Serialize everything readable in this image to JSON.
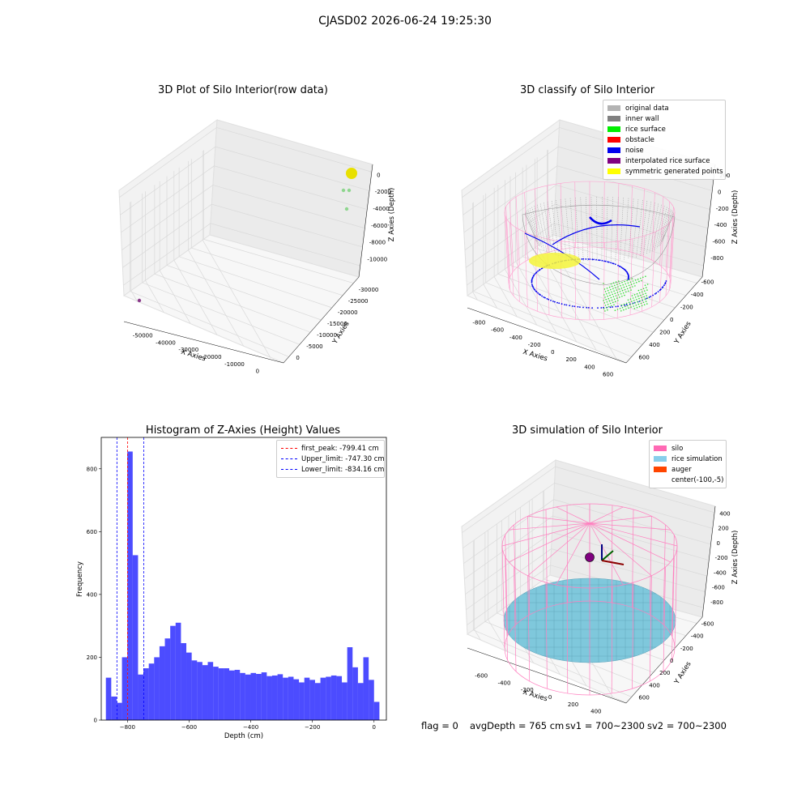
{
  "figure": {
    "suptitle": "CJASD02 2026-06-24 19:25:30",
    "footer": {
      "flag": "flag = 0",
      "avg_depth": "avgDepth = 765 cm",
      "sv1": "sv1 = 700~2300",
      "sv2": "sv2 = 700~2300"
    }
  },
  "chart_data": [
    {
      "type": "scatter",
      "subtype": "3d",
      "title": "3D Plot of Silo Interior(row data)",
      "xlabel": "X Axies",
      "ylabel": "Y Axies",
      "zlabel": "Z Axies (Depth)",
      "x_ticks": [
        "-50000",
        "-40000",
        "-30000",
        "-20000",
        "-10000",
        "0"
      ],
      "y_ticks": [
        "0",
        "-5000",
        "-10000",
        "-15000",
        "-20000",
        "-25000",
        "-30000"
      ],
      "z_ticks": [
        "0",
        "-2000",
        "-4000",
        "-6000",
        "-8000",
        "-10000"
      ],
      "series": [
        {
          "color": "#e8e000",
          "points": [
            {
              "x": 0,
              "y": 0,
              "z": -800
            }
          ]
        },
        {
          "color": "#8fd68f",
          "points": [
            {
              "x": 0,
              "y": 0,
              "z": -2400
            },
            {
              "x": 0,
              "y": -1000,
              "z": -2400
            },
            {
              "x": 0,
              "y": -2000,
              "z": -4000
            }
          ]
        },
        {
          "color": "#8b3a8b",
          "points": [
            {
              "x": -51000,
              "y": -31000,
              "z": -9500
            }
          ]
        }
      ],
      "grid": true
    },
    {
      "type": "scatter",
      "subtype": "3d",
      "title": "3D classify of Silo Interior",
      "xlabel": "X Axies",
      "ylabel": "Y Axies",
      "zlabel": "Z Axies (Depth)",
      "x_ticks": [
        "-800",
        "-600",
        "-400",
        "-200",
        "0",
        "200",
        "400",
        "600"
      ],
      "y_ticks": [
        "600",
        "400",
        "200",
        "0",
        "-200",
        "-400",
        "-600"
      ],
      "z_ticks": [
        "200",
        "0",
        "-200",
        "-400",
        "-600",
        "-800"
      ],
      "legend": [
        {
          "label": "original data",
          "color": "#b3b3b3"
        },
        {
          "label": "inner wall",
          "color": "#808080"
        },
        {
          "label": "rice surface",
          "color": "#00ee00"
        },
        {
          "label": "obstacle",
          "color": "#ff0000"
        },
        {
          "label": "noise",
          "color": "#0000ee"
        },
        {
          "label": "interpolated rice surface",
          "color": "#800080"
        },
        {
          "label": "symmetric generated points",
          "color": "#ffff00"
        }
      ],
      "legend_position": "top-right",
      "grid": true
    },
    {
      "type": "bar",
      "subtype": "histogram",
      "title": "Histogram of Z-Axies (Height) Values",
      "xlabel": "Depth (cm)",
      "ylabel": "Frequency",
      "xlim": [
        -885,
        40
      ],
      "ylim": [
        0,
        900
      ],
      "x_ticks": [
        -800,
        -600,
        -400,
        -200,
        0
      ],
      "y_ticks": [
        0,
        200,
        400,
        600,
        800
      ],
      "bin_start": -870,
      "bin_width": 17.4,
      "values": [
        135,
        75,
        55,
        200,
        855,
        525,
        145,
        165,
        180,
        200,
        235,
        260,
        300,
        310,
        245,
        215,
        190,
        185,
        175,
        185,
        170,
        165,
        165,
        158,
        160,
        150,
        145,
        150,
        147,
        152,
        140,
        142,
        146,
        135,
        138,
        130,
        120,
        135,
        128,
        118,
        135,
        138,
        142,
        140,
        120,
        232,
        168,
        118,
        200,
        128,
        58
      ],
      "bar_color": "#0000ff",
      "vlines": [
        {
          "label": "first_peak: -799.41 cm",
          "x": -799.41,
          "color": "#ff0000"
        },
        {
          "label": "Upper_limit: -747.30 cm",
          "x": -747.3,
          "color": "#0000ff"
        },
        {
          "label": "Lower_limit: -834.16 cm",
          "x": -834.16,
          "color": "#0000ff"
        }
      ],
      "legend_position": "top-right"
    },
    {
      "type": "area",
      "subtype": "3d-surface",
      "title": "3D simulation of Silo Interior",
      "xlabel": "X Axies",
      "ylabel": "Y Axies",
      "zlabel": "Z Axies (Depth)",
      "x_ticks": [
        "-600",
        "-400",
        "-200",
        "0",
        "200",
        "400"
      ],
      "y_ticks": [
        "600",
        "400",
        "200",
        "0",
        "-200",
        "-400",
        "-600"
      ],
      "z_ticks": [
        "400",
        "200",
        "0",
        "-200",
        "-400",
        "-600",
        "-800"
      ],
      "legend": [
        {
          "label": "silo",
          "color": "#ff69b4"
        },
        {
          "label": "rice simulation",
          "color": "#87ceeb"
        },
        {
          "label": "auger",
          "color": "#ff4500"
        },
        {
          "label": "center(-100,-5)",
          "color": ""
        }
      ],
      "legend_position": "top-right",
      "grid": true
    }
  ]
}
